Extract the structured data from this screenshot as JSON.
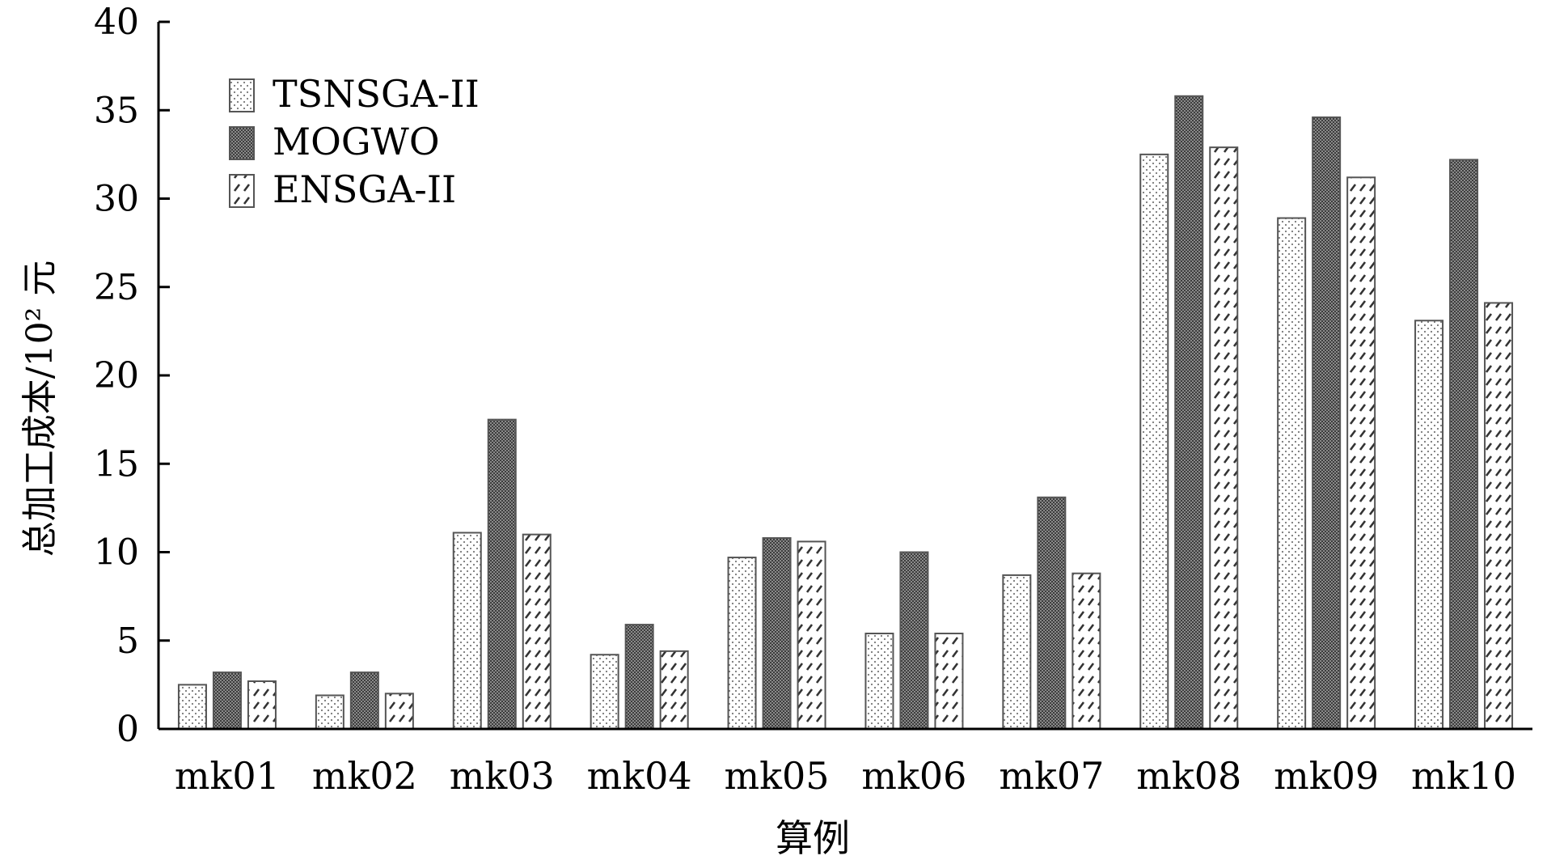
{
  "chart_data": {
    "type": "bar",
    "title": "",
    "xlabel": "算例",
    "ylabel": "总加工成本/10² 元",
    "ylim": [
      0,
      40
    ],
    "yticks": [
      0,
      5,
      10,
      15,
      20,
      25,
      30,
      35,
      40
    ],
    "categories": [
      "mk01",
      "mk02",
      "mk03",
      "mk04",
      "mk05",
      "mk06",
      "mk07",
      "mk08",
      "mk09",
      "mk10"
    ],
    "series": [
      {
        "name": "TSNSGA-II",
        "pattern": "dots",
        "values": [
          2.5,
          1.9,
          11.1,
          4.2,
          9.7,
          5.4,
          8.7,
          32.5,
          28.9,
          23.1
        ]
      },
      {
        "name": "MOGWO",
        "pattern": "crosshatch",
        "values": [
          3.2,
          3.2,
          17.5,
          5.9,
          10.8,
          10.0,
          13.1,
          35.8,
          34.6,
          32.2
        ]
      },
      {
        "name": "ENSGA-II",
        "pattern": "diagonal",
        "values": [
          2.7,
          2.0,
          11.0,
          4.4,
          10.6,
          5.4,
          8.8,
          32.9,
          31.2,
          24.1
        ]
      }
    ],
    "legend": {
      "placement": "top-left"
    },
    "grid": false,
    "colors": {
      "axis": "#000000",
      "bar_edge": "#555555",
      "fill_dark": "#3a3a3a",
      "fill_light": "#ffffff"
    }
  }
}
